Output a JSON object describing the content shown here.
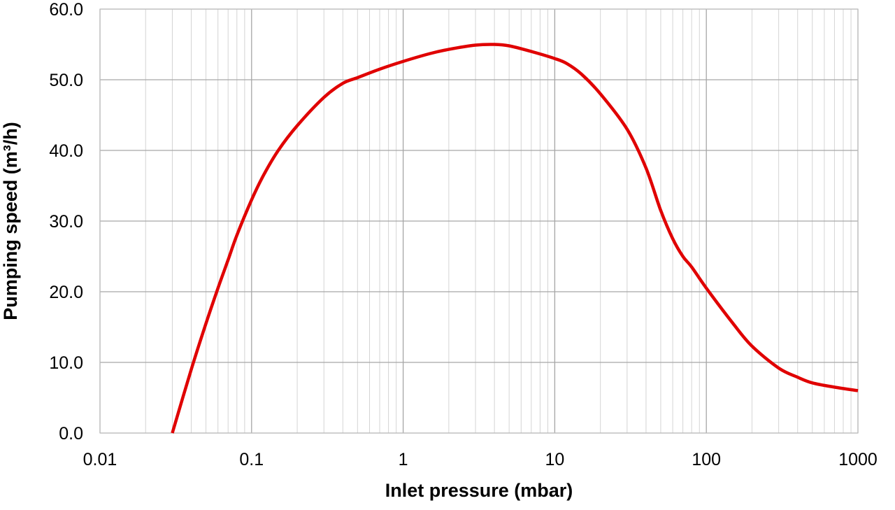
{
  "chart_data": {
    "type": "line",
    "xlabel": "Inlet pressure (mbar)",
    "ylabel": "Pumping speed (m³/h)",
    "x_scale": "log",
    "xlim": [
      0.01,
      1000
    ],
    "ylim": [
      0,
      60
    ],
    "x_ticks": [
      0.01,
      0.1,
      1,
      10,
      100,
      1000
    ],
    "x_tick_labels": [
      "0.01",
      "0.1",
      "1",
      "10",
      "100",
      "1000"
    ],
    "y_ticks": [
      0,
      10,
      20,
      30,
      40,
      50,
      60
    ],
    "y_tick_labels": [
      "0.0",
      "10.0",
      "20.0",
      "30.0",
      "40.0",
      "50.0",
      "60.0"
    ],
    "grid": true,
    "legend": "none",
    "series": [
      {
        "color": "#e00000",
        "x": [
          0.03,
          0.04,
          0.05,
          0.06,
          0.07,
          0.08,
          0.1,
          0.12,
          0.15,
          0.2,
          0.3,
          0.4,
          0.5,
          0.7,
          1,
          1.5,
          2,
          3,
          4,
          5,
          7,
          10,
          12,
          15,
          20,
          30,
          40,
          50,
          60,
          70,
          80,
          100,
          150,
          200,
          300,
          400,
          500,
          700,
          1000
        ],
        "y": [
          0,
          9,
          15.5,
          20.5,
          24.5,
          28,
          33,
          36.5,
          40,
          43.5,
          47.5,
          49.5,
          50.3,
          51.5,
          52.6,
          53.7,
          54.3,
          54.9,
          55,
          54.8,
          54,
          53,
          52.3,
          50.8,
          48,
          43,
          37.5,
          31.5,
          27.5,
          25,
          23.5,
          20.5,
          15.5,
          12.3,
          9.2,
          7.9,
          7.1,
          6.5,
          6
        ]
      }
    ]
  }
}
